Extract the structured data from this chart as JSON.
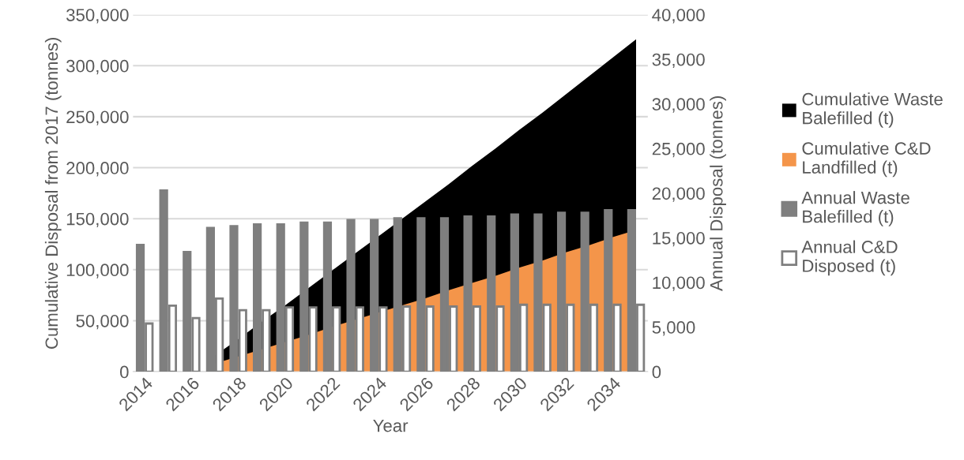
{
  "chart_data": {
    "type": "bar",
    "xlabel": "Year",
    "ylabel": "Cumulative Disposal from 2017 (tonnes)",
    "y2label": "Annual Disposal (tonnes)",
    "categories": [
      "2014",
      null,
      "2016",
      null,
      "2018",
      null,
      "2020",
      null,
      "2022",
      null,
      "2024",
      null,
      "2026",
      null,
      "2028",
      null,
      "2030",
      null,
      "2032",
      null,
      "2034",
      null
    ],
    "series": [
      {
        "name": "Cumulative Waste Balefilled (t)",
        "type": "area",
        "color": "#000000",
        "values": [
          null,
          null,
          null,
          16000,
          32000,
          49000,
          65000,
          82000,
          99000,
          116000,
          133000,
          150000,
          167000,
          184000,
          202000,
          219000,
          237000,
          254000,
          272000,
          290000,
          308000,
          326000
        ]
      },
      {
        "name": "Cumulative C&D Landfilled (t)",
        "type": "area",
        "color": "#f4954a",
        "values": [
          null,
          null,
          null,
          8000,
          15000,
          22000,
          29000,
          36000,
          44000,
          51000,
          58000,
          65000,
          72000,
          80000,
          87000,
          94000,
          102000,
          109000,
          117000,
          124000,
          132000,
          139000
        ]
      },
      {
        "name": "Annual Waste Balefilled (t)",
        "axis": "y2",
        "color": "#7f7f7f",
        "values": [
          14200,
          20300,
          13400,
          16100,
          16300,
          16500,
          16500,
          16700,
          16700,
          17000,
          17000,
          17200,
          17200,
          17200,
          17400,
          17400,
          17600,
          17600,
          17800,
          17800,
          18100,
          18100
        ]
      },
      {
        "name": "Annual C&D Disposed (t)",
        "axis": "y2",
        "color": "#ffffff",
        "values": [
          5400,
          7400,
          6000,
          8200,
          6900,
          6900,
          7200,
          7200,
          7200,
          7200,
          7200,
          7300,
          7300,
          7300,
          7300,
          7300,
          7500,
          7500,
          7500,
          7500,
          7500,
          7500
        ]
      }
    ],
    "ylim": [
      0,
      350000
    ],
    "yticks": [
      {
        "value": 0,
        "label": "0"
      },
      {
        "value": 50000,
        "label": "50,000"
      },
      {
        "value": 100000,
        "label": "100,000"
      },
      {
        "value": 150000,
        "label": "150,000"
      },
      {
        "value": 200000,
        "label": "200,000"
      },
      {
        "value": 250000,
        "label": "250,000"
      },
      {
        "value": 300000,
        "label": "300,000"
      },
      {
        "value": 350000,
        "label": "350,000"
      }
    ],
    "y2lim": [
      0,
      40000
    ],
    "y2ticks": [
      {
        "value": 0,
        "label": "0"
      },
      {
        "value": 5000,
        "label": "5,000"
      },
      {
        "value": 10000,
        "label": "10,000"
      },
      {
        "value": 15000,
        "label": "15,000"
      },
      {
        "value": 20000,
        "label": "20,000"
      },
      {
        "value": 25000,
        "label": "25,000"
      },
      {
        "value": 30000,
        "label": "30,000"
      },
      {
        "value": 35000,
        "label": "35,000"
      },
      {
        "value": 40000,
        "label": "40,000"
      }
    ],
    "grid": "y",
    "legend": "right"
  }
}
